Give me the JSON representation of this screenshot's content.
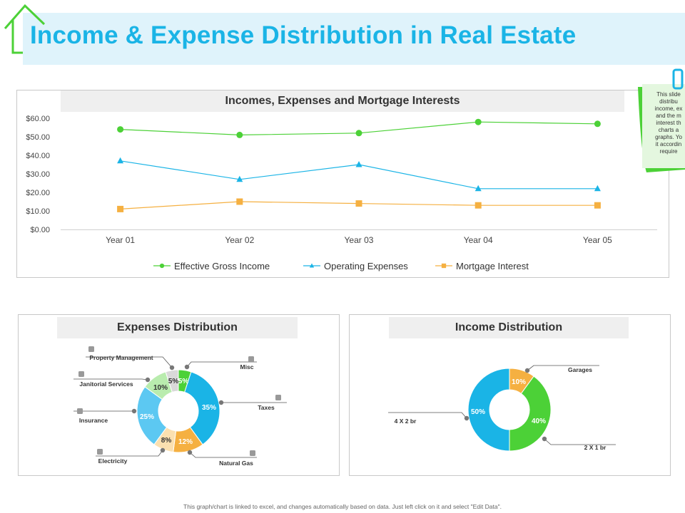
{
  "page": {
    "title": "Income & Expense Distribution in Real Estate",
    "footer_note": "This graph/chart is linked to excel, and changes automatically based on data. Just left click on it and select \"Edit Data\"."
  },
  "sticky_note": {
    "lines": [
      "This slide",
      "distribu",
      "income, ex",
      "and the m",
      "interest th",
      "charts a",
      "graphs. Yo",
      "it accordin",
      "require"
    ]
  },
  "colors": {
    "title": "#1ab4e6",
    "title_band": "#dff3fb",
    "green": "#4cd137",
    "blue": "#1ab4e6",
    "orange": "#f5b041"
  },
  "chart_data": [
    {
      "type": "line",
      "title": "Incomes, Expenses and Mortgage Interests",
      "categories": [
        "Year 01",
        "Year 02",
        "Year 03",
        "Year 04",
        "Year 05"
      ],
      "series": [
        {
          "name": "Effective Gross Income",
          "values": [
            54,
            51,
            52,
            58,
            57
          ],
          "color": "#4cd137",
          "marker": "circle"
        },
        {
          "name": "Operating Expenses",
          "values": [
            37,
            27,
            35,
            22,
            22
          ],
          "color": "#1ab4e6",
          "marker": "triangle"
        },
        {
          "name": "Mortgage Interest",
          "values": [
            11,
            15,
            14,
            13,
            13
          ],
          "color": "#f5b041",
          "marker": "square"
        }
      ],
      "y_ticks": [
        "$0.00",
        "$10.00",
        "$20.00",
        "$30.00",
        "$40.00",
        "$50.00",
        "$60.00"
      ],
      "ylim": [
        0,
        60
      ],
      "legend": "bottom",
      "grid": false
    },
    {
      "type": "pie",
      "title": "Expenses Distribution",
      "slices": [
        {
          "name": "Misc",
          "value": 5,
          "label": "5%",
          "color": "#4cd137"
        },
        {
          "name": "Taxes",
          "value": 35,
          "label": "35%",
          "color": "#1ab4e6"
        },
        {
          "name": "Natural Gas",
          "value": 12,
          "label": "12%",
          "color": "#f5b041"
        },
        {
          "name": "Electricity",
          "value": 8,
          "label": "8%",
          "color": "#fbe0b0"
        },
        {
          "name": "Insurance",
          "value": 25,
          "label": "25%",
          "color": "#5cc8f2"
        },
        {
          "name": "Janitorial Services",
          "value": 10,
          "label": "10%",
          "color": "#b9ecae"
        },
        {
          "name": "Property Management",
          "value": 5,
          "label": "5%",
          "color": "#d9d9d9"
        }
      ]
    },
    {
      "type": "pie",
      "title": "Income Distribution",
      "slices": [
        {
          "name": "Garages",
          "value": 10,
          "label": "10%",
          "color": "#f5b041"
        },
        {
          "name": "2 X 1 br",
          "value": 40,
          "label": "40%",
          "color": "#4cd137"
        },
        {
          "name": "4 X 2 br",
          "value": 50,
          "label": "50%",
          "color": "#1ab4e6"
        }
      ]
    }
  ]
}
